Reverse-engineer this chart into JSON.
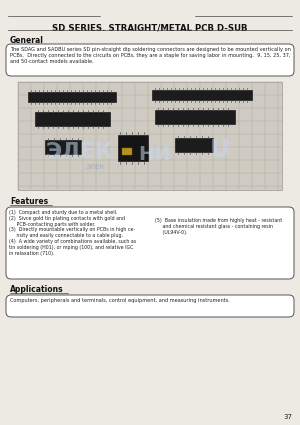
{
  "title": "SD SERIES. STRAIGHT/METAL PCB D-SUB",
  "bg_color": "#ede9e3",
  "page_number": "37",
  "general_heading": "General",
  "general_text": "The SDAG and SADBU series SD pin-straight dip soldering connectors are designed to be mounted vertically on\nPCBs.  Directly connected to the circuits on PCBs, they are a staple for saving labor in mounting.  9, 15, 25, 37,\nand 50-contact models available.",
  "features_heading": "Features",
  "features_left": "(1)  Compact and sturdy due to a metal shell.\n(2)  Sivce gold tin plating contacts with gold and\n     PCB-contacting parts with solder.\n(3)  Directly mountable vertically on PCBs in high ce-\n     nsity and easily connectable to a cable plug.\n(4)  A wide variety of combinations available, such as",
  "features_left2": "tin soldering (H01), or mping (100), and relative IGC\nin relaxation (710).",
  "features_right": "(5)  Base insulation made from highly heat - resistant\n     and chemical resistant glass - containing resin\n     (UL94V-0).",
  "applications_heading": "Applications",
  "applications_text": "Computers, peripherals and terminals, control equipment, and measuring instruments.",
  "line_color": "#444444",
  "heading_color": "#111111",
  "text_color": "#222222",
  "box_bg": "#ffffff",
  "watermark1": "ЭЛЕК",
  "watermark2": "НИ",
  "watermark3": "U",
  "watermark_color": "#c5d8ee",
  "grid_bg": "#ccc9c0",
  "grid_line": "#b0aba0"
}
